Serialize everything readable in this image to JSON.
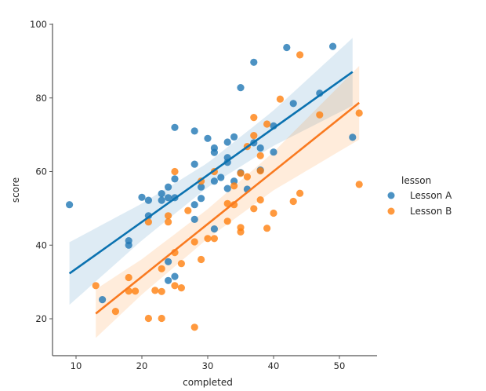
{
  "chart_data": {
    "type": "scatter",
    "title": "",
    "xlabel": "completed",
    "ylabel": "score",
    "xlim": [
      6.5,
      55.5
    ],
    "ylim": [
      10,
      101
    ],
    "xticks": [
      10,
      20,
      30,
      40,
      50
    ],
    "yticks": [
      20,
      40,
      60,
      80,
      100
    ],
    "xtick_labels": [
      "10",
      "20",
      "30",
      "40",
      "50"
    ],
    "ytick_labels": [
      "20",
      "40",
      "60",
      "80",
      "100"
    ],
    "grid": false,
    "legend": {
      "title": "lesson",
      "position": "right",
      "entries": [
        "Lesson A",
        "Lesson B"
      ]
    },
    "series": [
      {
        "name": "Lesson A",
        "color": "#1f77b4",
        "line_color": "#0b72b0",
        "points": [
          [
            9,
            51
          ],
          [
            14,
            25.2
          ],
          [
            18,
            41.2
          ],
          [
            18,
            40
          ],
          [
            20,
            53
          ],
          [
            21,
            52.2
          ],
          [
            21,
            48
          ],
          [
            23,
            54
          ],
          [
            23,
            52.2
          ],
          [
            24,
            55.8
          ],
          [
            24,
            52.9
          ],
          [
            24,
            35.5
          ],
          [
            24,
            30.4
          ],
          [
            25,
            72
          ],
          [
            25,
            58
          ],
          [
            25,
            52.9
          ],
          [
            25,
            31.5
          ],
          [
            28,
            71
          ],
          [
            28,
            62
          ],
          [
            28,
            51
          ],
          [
            28,
            47
          ],
          [
            29,
            55.8
          ],
          [
            29,
            52.7
          ],
          [
            30,
            69
          ],
          [
            31,
            66.4
          ],
          [
            31,
            65.2
          ],
          [
            31,
            57.4
          ],
          [
            31,
            44.4
          ],
          [
            32,
            58.4
          ],
          [
            33,
            68
          ],
          [
            33,
            63.8
          ],
          [
            33,
            62.5
          ],
          [
            33,
            55.4
          ],
          [
            34,
            69.4
          ],
          [
            34,
            57.4
          ],
          [
            35,
            82.8
          ],
          [
            35,
            59.7
          ],
          [
            36,
            55.2
          ],
          [
            37,
            89.7
          ],
          [
            37,
            67.8
          ],
          [
            38,
            66.4
          ],
          [
            38,
            60.4
          ],
          [
            40,
            72.4
          ],
          [
            40,
            65.3
          ],
          [
            42,
            93.7
          ],
          [
            43,
            78.5
          ],
          [
            47,
            81.3
          ],
          [
            49,
            94
          ],
          [
            52,
            69.3
          ]
        ],
        "regression": {
          "slope": 1.274,
          "intercept": 20.83,
          "x_range": [
            9,
            52
          ],
          "ci": {
            "x": [
              9,
              20,
              30,
              40,
              52
            ],
            "lower": [
              23.8,
              41.3,
              55.75,
              67.0,
              77.9
            ],
            "upper": [
              40.8,
              51.3,
              62.35,
              76.6,
              96.3
            ]
          }
        }
      },
      {
        "name": "Lesson B",
        "color": "#ff7f0e",
        "line_color": "#f97a20",
        "points": [
          [
            13,
            29
          ],
          [
            16,
            22
          ],
          [
            18,
            31.2
          ],
          [
            18,
            27.5
          ],
          [
            19,
            27.5
          ],
          [
            21,
            46.3
          ],
          [
            21,
            20.1
          ],
          [
            22,
            27.7
          ],
          [
            23,
            33.6
          ],
          [
            23,
            27.4
          ],
          [
            23,
            20.1
          ],
          [
            24,
            48
          ],
          [
            24,
            46.3
          ],
          [
            25,
            60
          ],
          [
            25,
            38
          ],
          [
            25,
            29
          ],
          [
            26,
            35
          ],
          [
            26,
            28.4
          ],
          [
            27,
            49.4
          ],
          [
            28,
            40.9
          ],
          [
            28,
            17.7
          ],
          [
            29,
            57.4
          ],
          [
            29,
            36.1
          ],
          [
            30,
            41.8
          ],
          [
            31,
            60
          ],
          [
            31,
            41.8
          ],
          [
            33,
            51.3
          ],
          [
            33,
            46.5
          ],
          [
            34,
            56.1
          ],
          [
            34,
            51
          ],
          [
            35,
            59.5
          ],
          [
            35,
            44.8
          ],
          [
            35,
            43.6
          ],
          [
            36,
            66.8
          ],
          [
            36,
            58.6
          ],
          [
            37,
            74.7
          ],
          [
            37,
            69.8
          ],
          [
            37,
            49.9
          ],
          [
            38,
            64.3
          ],
          [
            38,
            60.2
          ],
          [
            38,
            52.3
          ],
          [
            39,
            72.9
          ],
          [
            39,
            44.6
          ],
          [
            40,
            48.7
          ],
          [
            41,
            79.7
          ],
          [
            43,
            51.9
          ],
          [
            44,
            91.7
          ],
          [
            44,
            54.1
          ],
          [
            47,
            75.4
          ],
          [
            53,
            75.9
          ],
          [
            53,
            56.5
          ]
        ],
        "regression": {
          "slope": 1.4325,
          "intercept": 2.78,
          "x_range": [
            13,
            53
          ],
          "ci": {
            "x": [
              13,
              20,
              30,
              40,
              53
            ],
            "lower": [
              14.8,
              26.6,
              41.8,
              54.9,
              68.7
            ],
            "upper": [
              28.0,
              36.2,
              49.8,
              65.3,
              88.7
            ]
          }
        }
      }
    ]
  }
}
